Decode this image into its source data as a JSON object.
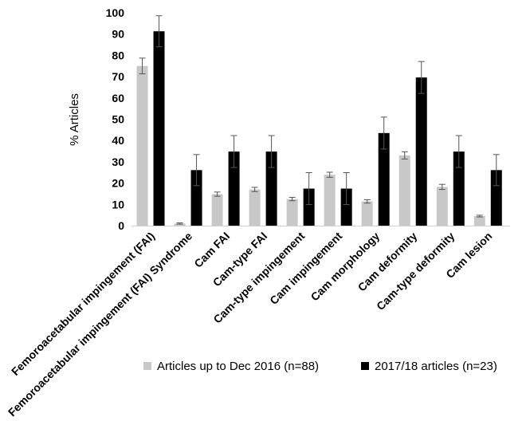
{
  "chart_data": {
    "type": "bar",
    "ylabel": "% Articles",
    "xlabel": "",
    "ylim": [
      0,
      100
    ],
    "yticks": [
      0,
      10,
      20,
      30,
      40,
      50,
      60,
      70,
      80,
      90,
      100
    ],
    "grid": false,
    "legend_position": "bottom",
    "categories": [
      "Femoroacetabular impingement (FAI)",
      "Femoroacetabular impingement (FAI) Syndrome",
      "Cam FAI",
      "Cam-type FAI",
      "Cam-type impingement",
      "Cam impingement",
      "Cam morphology",
      "Cam deformity",
      "Cam-type deformity",
      "Cam lesion"
    ],
    "series": [
      {
        "name": "Articles up to Dec 2016 (n=88)",
        "color": "#c8c8c8",
        "values": [
          75,
          1,
          14.8,
          17,
          12.5,
          23.9,
          11.4,
          33,
          18.2,
          4.5
        ],
        "error": [
          3.7,
          0.3,
          1.0,
          1.0,
          0.8,
          1.2,
          0.8,
          1.7,
          1.2,
          0.4
        ]
      },
      {
        "name": "2017/18 articles (n=23)",
        "color": "#000000",
        "values": [
          91.3,
          26.1,
          34.8,
          34.8,
          17.4,
          17.4,
          43.5,
          69.6,
          34.8,
          26.1
        ],
        "error": [
          7.3,
          7.3,
          7.5,
          7.5,
          7.5,
          7.5,
          7.5,
          7.5,
          7.5,
          7.3
        ]
      }
    ]
  }
}
